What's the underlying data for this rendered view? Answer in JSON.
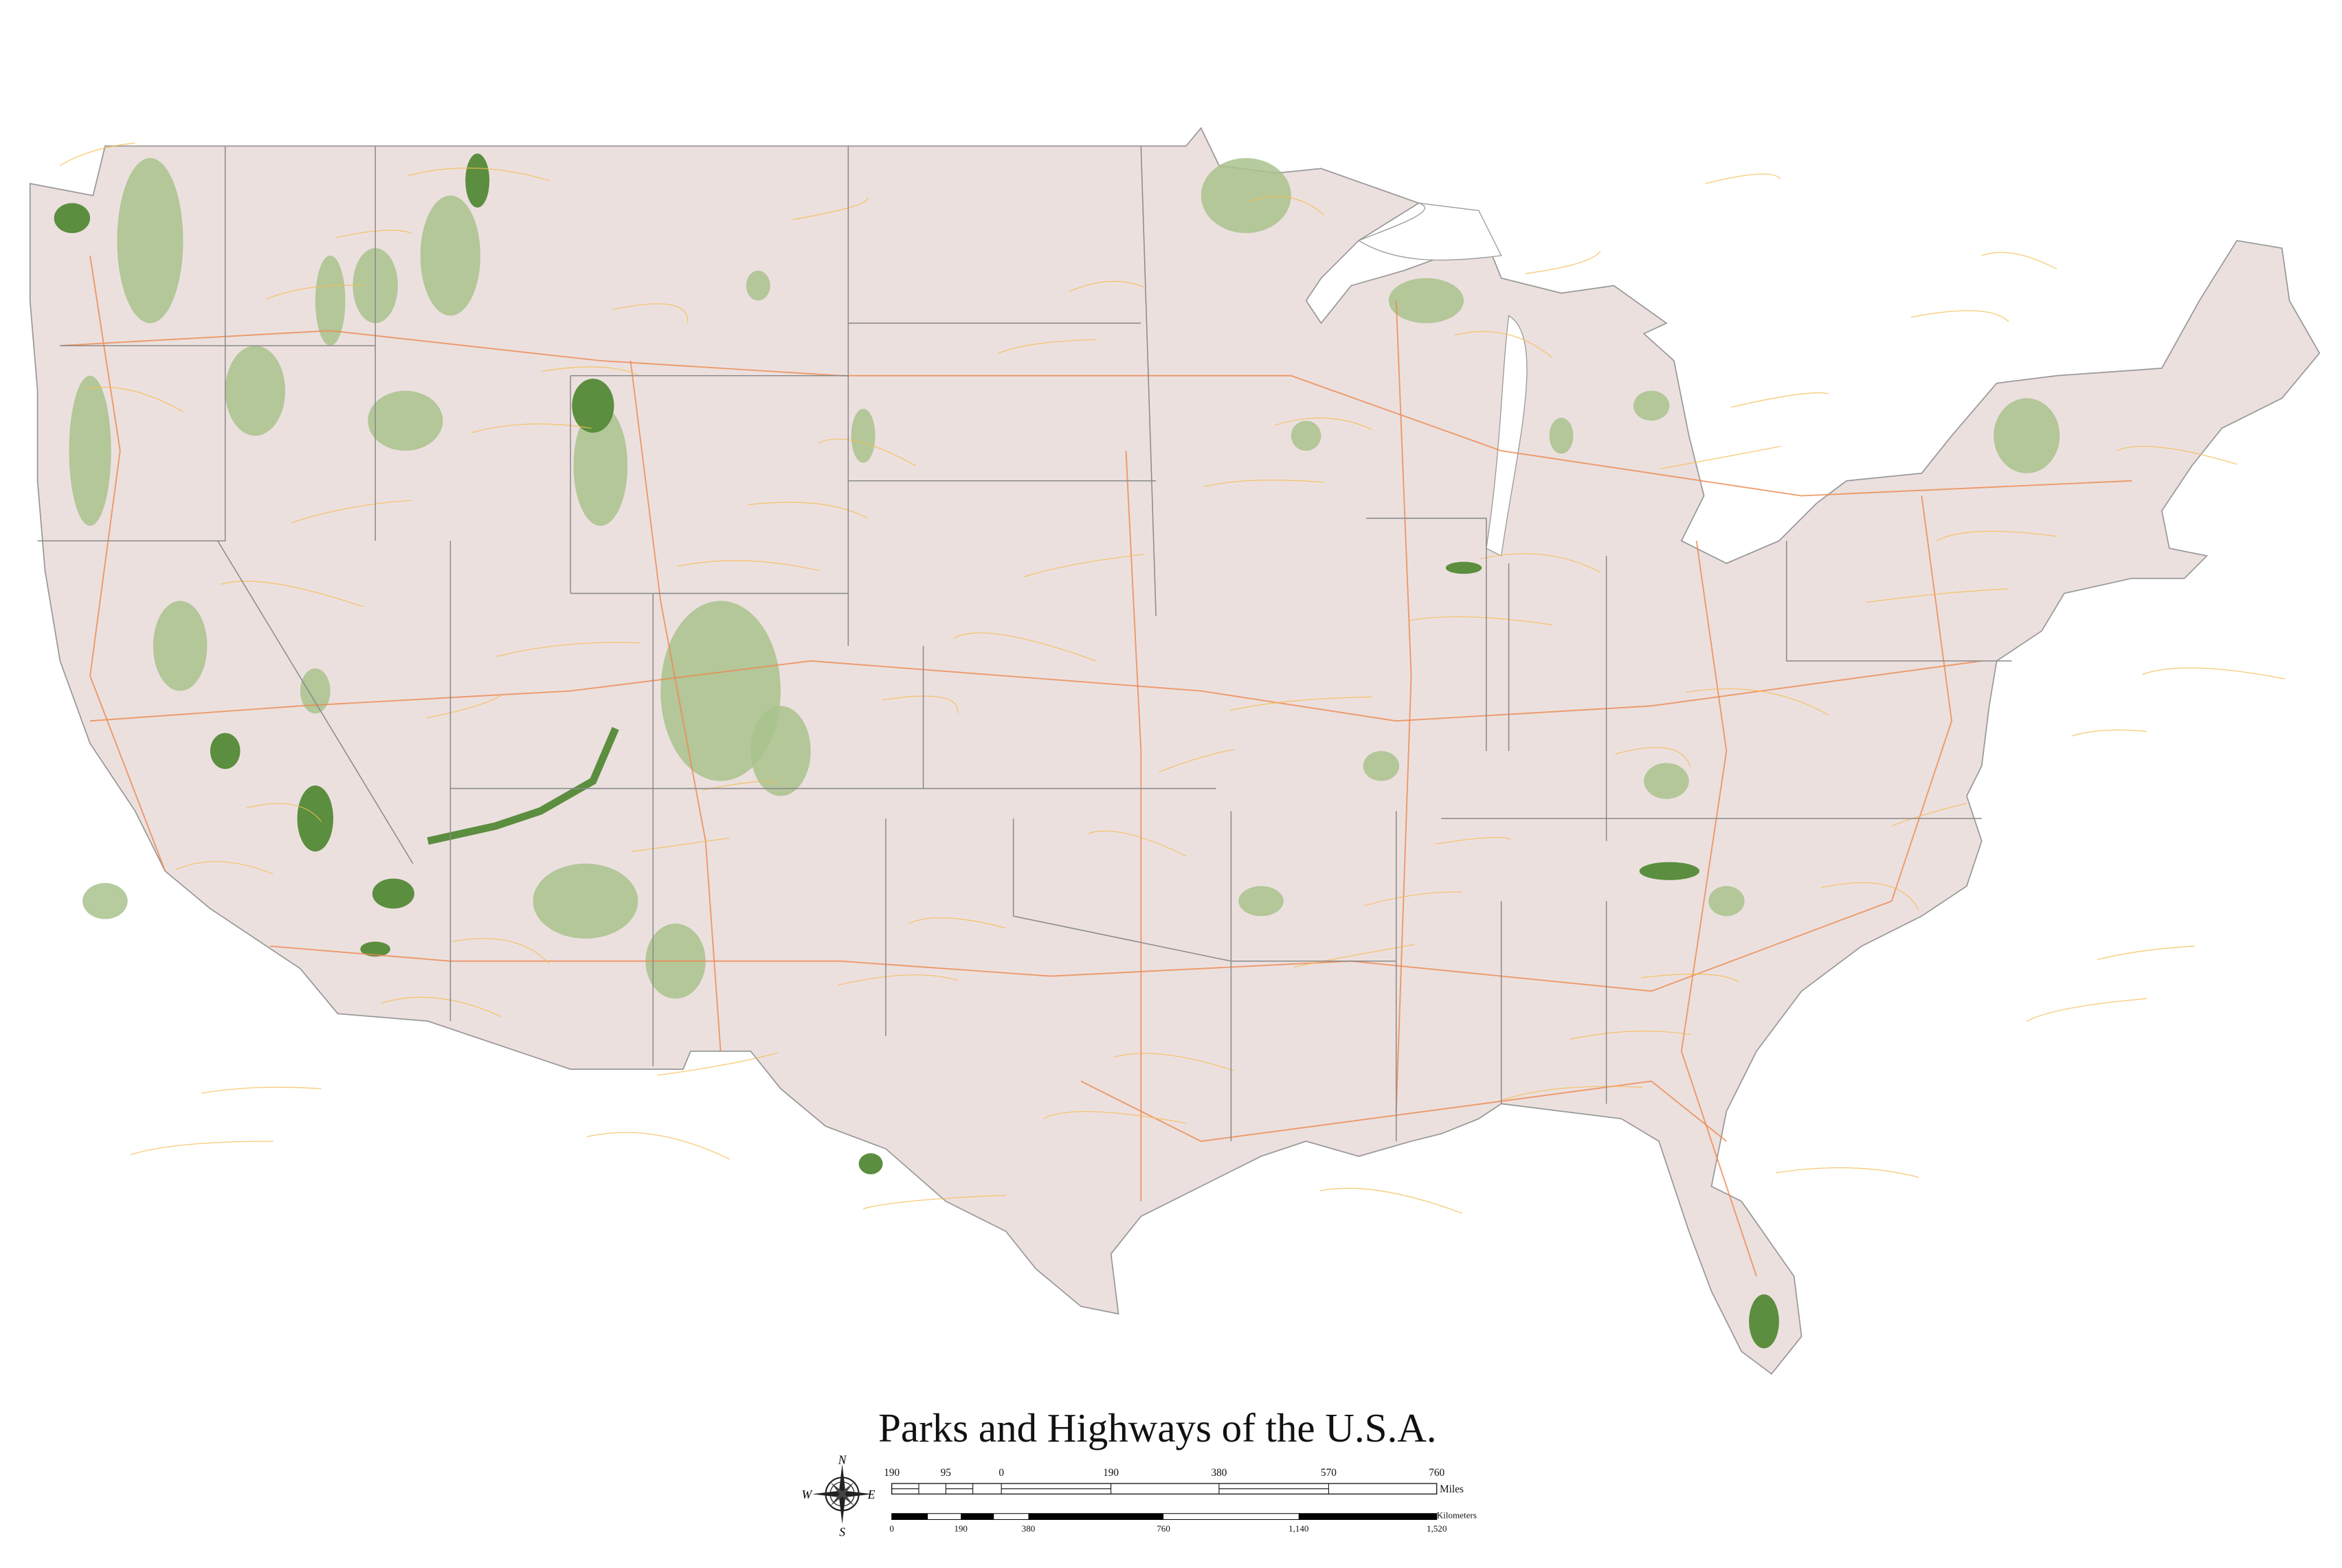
{
  "title": "Parks and Highways of the U.S.A.",
  "colors": {
    "land": "#ece0df",
    "park_light": "#a9c28d",
    "park_dark": "#5b8e3e",
    "highway_major": "#ec8a50",
    "highway_minor": "#f5bd55",
    "border": "#8a8a8a",
    "water": "#bcd6e8"
  },
  "compass": {
    "n": "N",
    "s": "S",
    "e": "E",
    "w": "W"
  },
  "scale_miles": {
    "unit": "Miles",
    "ticks": [
      "190",
      "95",
      "0",
      "190",
      "380",
      "570",
      "760"
    ]
  },
  "scale_km": {
    "unit": "Kilometers",
    "ticks": [
      "0",
      "190",
      "380",
      "760",
      "1,140",
      "1,520"
    ]
  }
}
